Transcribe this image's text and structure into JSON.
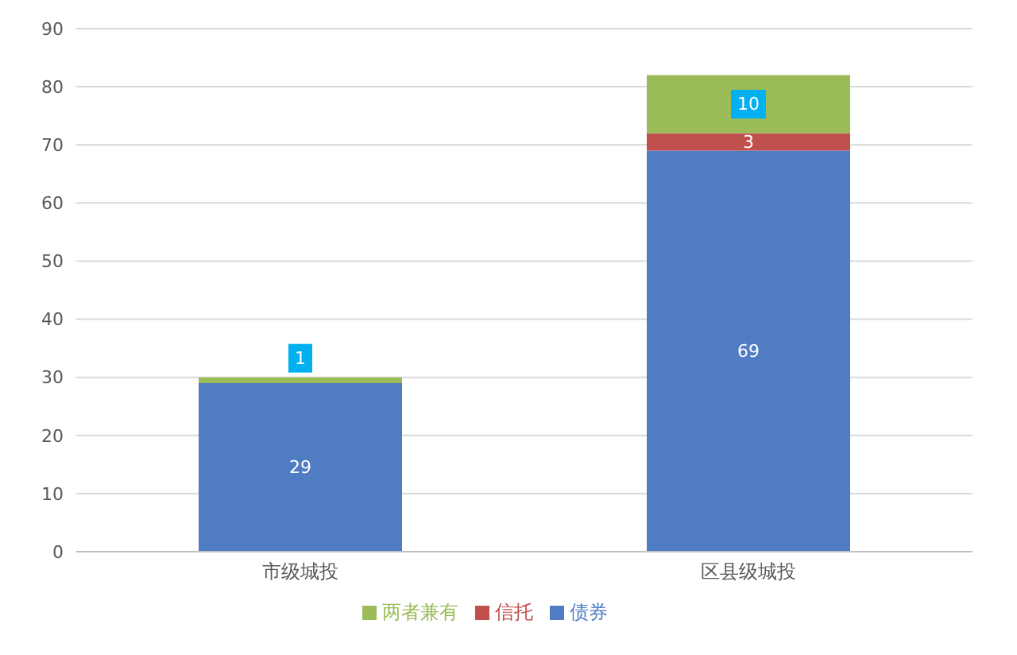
{
  "chart_data": {
    "type": "bar",
    "stacked": true,
    "categories": [
      "市级城投",
      "区县级城投"
    ],
    "series": [
      {
        "name": "债券",
        "color": "#4f7cc2",
        "values": [
          29,
          69
        ],
        "value_labels": [
          "29",
          "69"
        ]
      },
      {
        "name": "信托",
        "color": "#c0504d",
        "values": [
          0,
          3
        ],
        "value_labels": [
          null,
          "3"
        ]
      },
      {
        "name": "两者兼有",
        "color": "#9bbb59",
        "values": [
          1,
          10
        ],
        "value_labels": [
          "1",
          "10"
        ]
      }
    ],
    "ylim": [
      0,
      90
    ],
    "yticks": [
      0,
      10,
      20,
      30,
      40,
      50,
      60,
      70,
      80,
      90
    ],
    "grid": "y",
    "legend": "bottom"
  }
}
